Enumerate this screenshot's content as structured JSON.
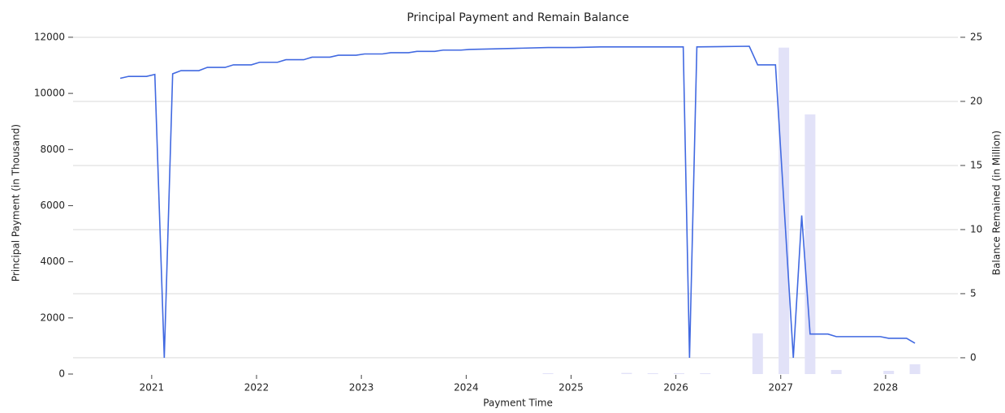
{
  "chart_data": {
    "type": "combo",
    "title": "Principal Payment and Remain Balance",
    "xlabel": "Payment Time",
    "ylabel": "Principal Payment (in Thousand)",
    "y2label": "Balance Remained (in Million)",
    "xlim": [
      2020.25,
      2028.69
    ],
    "xticks": [
      2021,
      2022,
      2023,
      2024,
      2025,
      2026,
      2027,
      2028
    ],
    "ylim": [
      0,
      12200
    ],
    "yticks": [
      0,
      2000,
      4000,
      6000,
      8000,
      10000,
      12000
    ],
    "y2lim": [
      -1.27,
      25.44
    ],
    "y2ticks": [
      0,
      5,
      10,
      15,
      20,
      25
    ],
    "grid": true,
    "series": [
      {
        "type": "bar",
        "color": "#e2e2f8",
        "x": [
          2024.78,
          2025.53,
          2025.78,
          2026.03,
          2026.28,
          2026.78,
          2027.03,
          2027.28,
          2027.53,
          2028.03,
          2028.28
        ],
        "values": [
          30,
          40,
          30,
          30,
          30,
          1450,
          11630,
          9250,
          145,
          115,
          350
        ]
      },
      {
        "type": "line",
        "axis": "y2",
        "color": "#4169e1",
        "x": [
          2020.7,
          2020.78,
          2020.95,
          2021.03,
          2021.12,
          2021.2,
          2021.28,
          2021.45,
          2021.53,
          2021.7,
          2021.78,
          2021.95,
          2022.03,
          2022.2,
          2022.28,
          2022.45,
          2022.53,
          2022.7,
          2022.78,
          2022.95,
          2023.03,
          2023.2,
          2023.28,
          2023.45,
          2023.53,
          2023.7,
          2023.78,
          2023.95,
          2024.03,
          2024.28,
          2024.53,
          2024.78,
          2025.03,
          2025.28,
          2026.07,
          2026.13,
          2026.2,
          2026.7,
          2026.78,
          2026.95,
          2027.12,
          2027.2,
          2027.28,
          2027.45,
          2027.53,
          2027.95,
          2028.03,
          2028.2,
          2028.28
        ],
        "values": [
          21.8,
          21.95,
          21.95,
          22.1,
          0,
          22.15,
          22.4,
          22.4,
          22.65,
          22.65,
          22.85,
          22.85,
          23.05,
          23.05,
          23.25,
          23.25,
          23.45,
          23.45,
          23.6,
          23.6,
          23.7,
          23.7,
          23.8,
          23.8,
          23.9,
          23.9,
          24.0,
          24.0,
          24.05,
          24.1,
          24.15,
          24.2,
          24.2,
          24.25,
          24.25,
          0,
          24.25,
          24.3,
          22.85,
          22.85,
          0,
          11.1,
          1.85,
          1.85,
          1.65,
          1.65,
          1.52,
          1.52,
          1.14
        ]
      }
    ]
  }
}
